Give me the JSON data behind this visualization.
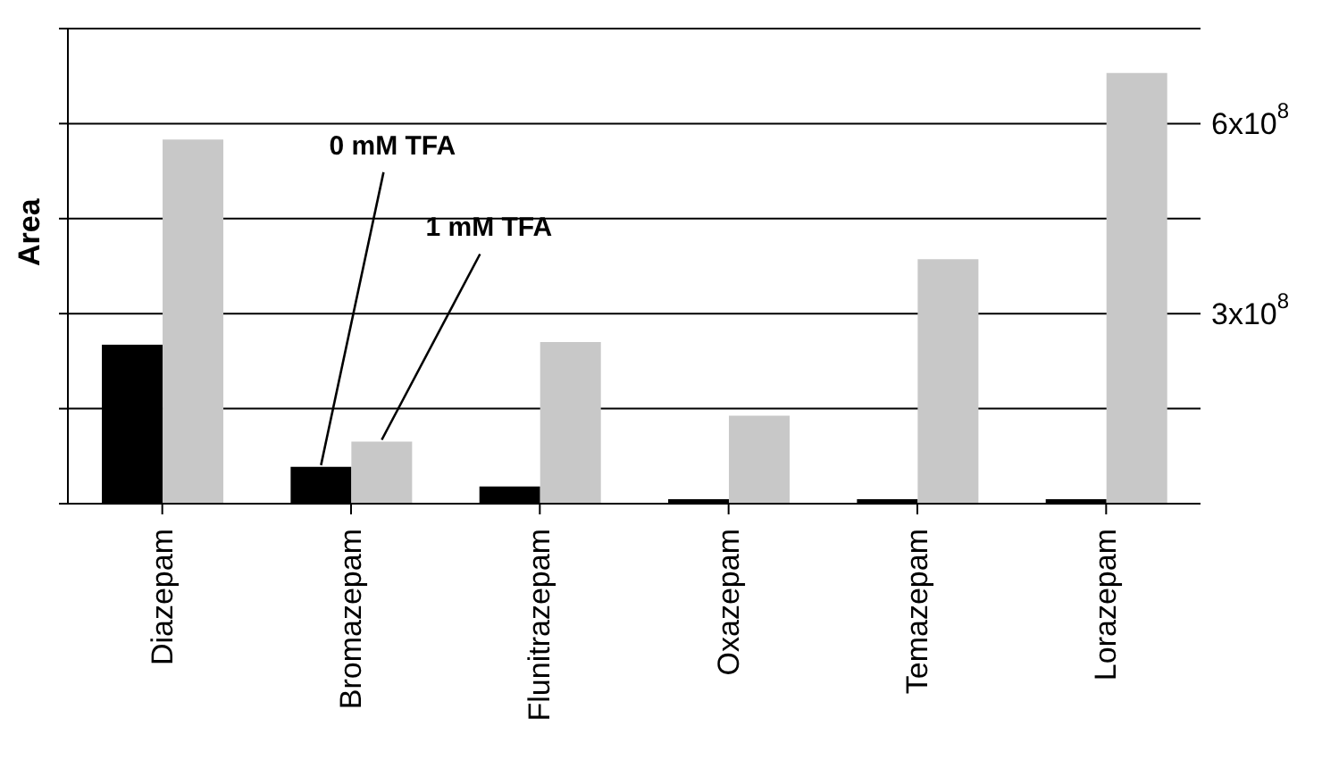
{
  "chart_data": {
    "type": "bar",
    "ylabel": "Area",
    "categories": [
      "Diazepam",
      "Bromazepam",
      "Flunitrazepam",
      "Oxazepam",
      "Temazepam",
      "Lorazepam"
    ],
    "series": [
      {
        "name": "0 mM TFA",
        "color": "#000000",
        "values": [
          251000000,
          58000000,
          27000000,
          7000000,
          7000000,
          7000000
        ]
      },
      {
        "name": "1 mM TFA",
        "color": "#c8c8c8",
        "values": [
          575000000,
          98000000,
          255000000,
          139000000,
          386000000,
          680000000
        ]
      }
    ],
    "ylim": [
      0,
      750000000
    ],
    "yticks": [
      {
        "value": 0,
        "label": null
      },
      {
        "value": 150000000,
        "label": null
      },
      {
        "value": 300000000,
        "label": "3x10$^{8}$"
      },
      {
        "value": 450000000,
        "label": null
      },
      {
        "value": 600000000,
        "label": "6x10$^{8}$"
      },
      {
        "value": 750000000,
        "label": null
      }
    ],
    "grid": "y"
  }
}
